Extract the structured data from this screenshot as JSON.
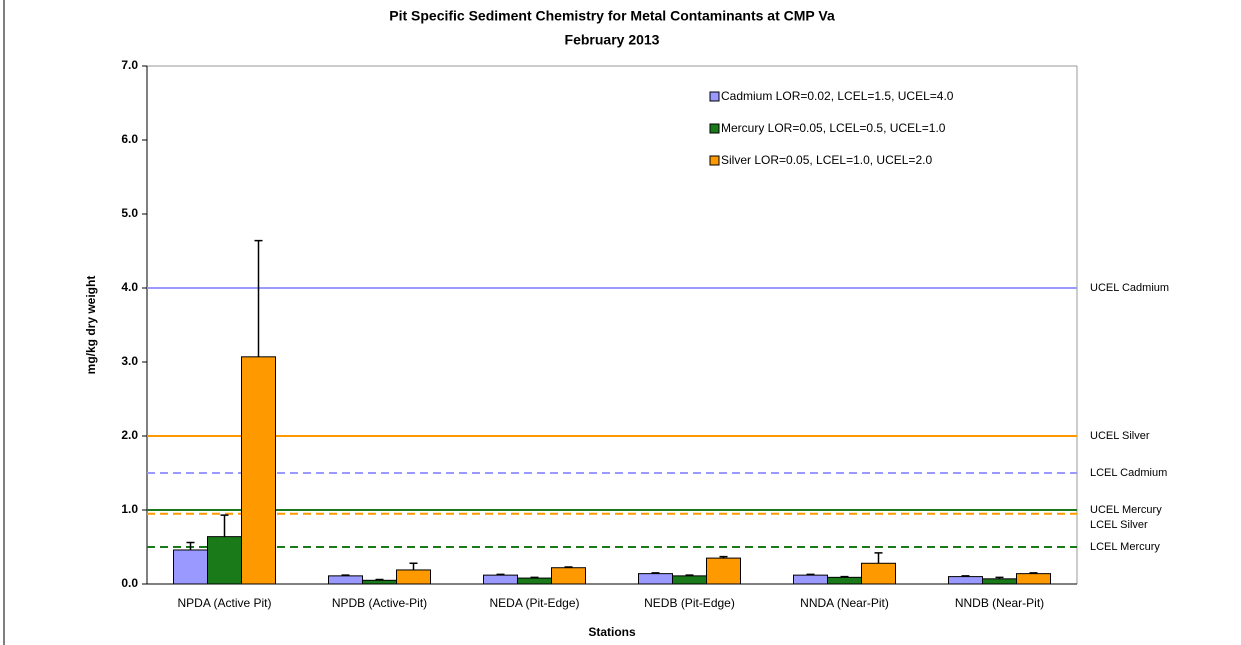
{
  "chart_data": {
    "type": "bar",
    "title": "Pit Specific Sediment Chemistry for Metal Contaminants at CMP Va",
    "subtitle": "February 2013",
    "x_label": "Stations",
    "y_label": "mg/kg dry weight",
    "categories": [
      "NPDA (Active Pit)",
      "NPDB (Active-Pit)",
      "NEDA (Pit-Edge)",
      "NEDB (Pit-Edge)",
      "NNDA (Near-Pit)",
      "NNDB (Near-Pit)"
    ],
    "series": [
      {
        "name": "Cadmium LOR=0.02, LCEL=1.5, UCEL=4.0",
        "color": "#9999ff",
        "values": [
          0.46,
          0.11,
          0.12,
          0.14,
          0.12,
          0.1
        ],
        "errors": [
          0.1,
          0.01,
          0.01,
          0.01,
          0.01,
          0.01
        ]
      },
      {
        "name": "Mercury LOR=0.05, LCEL=0.5, UCEL=1.0",
        "color": "#1a7a1a",
        "values": [
          0.64,
          0.05,
          0.08,
          0.11,
          0.09,
          0.07
        ],
        "errors": [
          0.29,
          0.01,
          0.01,
          0.01,
          0.01,
          0.02
        ]
      },
      {
        "name": "Silver LOR=0.05, LCEL=1.0, UCEL=2.0",
        "color": "#ff9900",
        "values": [
          3.07,
          0.19,
          0.22,
          0.35,
          0.28,
          0.14
        ],
        "errors": [
          1.57,
          0.09,
          0.01,
          0.02,
          0.14,
          0.01
        ]
      }
    ],
    "reference_lines": [
      {
        "label": "UCEL Cadmium",
        "value": 4.0,
        "color": "#9999ff",
        "dashed": false
      },
      {
        "label": "UCEL Silver",
        "value": 2.0,
        "color": "#ff9900",
        "dashed": false
      },
      {
        "label": "LCEL Cadmium",
        "value": 1.5,
        "color": "#9999ff",
        "dashed": true
      },
      {
        "label": "UCEL Mercury",
        "value": 1.0,
        "color": "#1a7a1a",
        "dashed": false
      },
      {
        "label": "LCEL Silver",
        "value": 0.95,
        "color": "#ff9900",
        "dashed": true
      },
      {
        "label": "LCEL Mercury",
        "value": 0.5,
        "color": "#1a7a1a",
        "dashed": true
      }
    ],
    "ylim": [
      0,
      7
    ],
    "yticks": [
      {
        "value": 0,
        "label": "0.0"
      },
      {
        "value": 1,
        "label": "1.0"
      },
      {
        "value": 2,
        "label": "2.0"
      },
      {
        "value": 3,
        "label": "3.0"
      },
      {
        "value": 4,
        "label": "4.0"
      },
      {
        "value": 5,
        "label": "5.0"
      },
      {
        "value": 6,
        "label": "6.0"
      },
      {
        "value": 7,
        "label": "7.0"
      }
    ],
    "grid": false,
    "legend": "top-right"
  }
}
